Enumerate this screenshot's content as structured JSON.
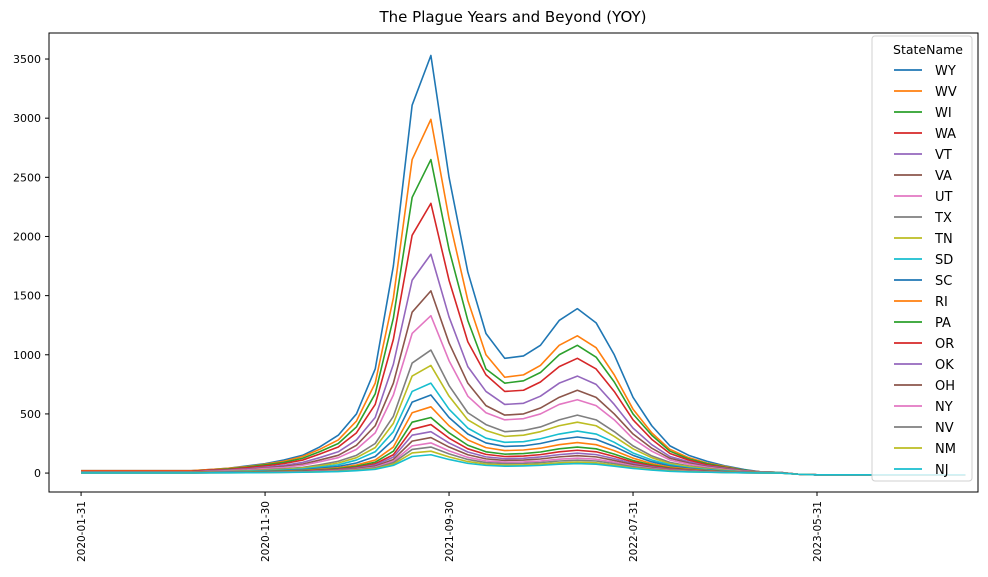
{
  "chart_data": {
    "type": "line",
    "title": "The Plague Years and Beyond (YOY)",
    "xlabel": "",
    "ylabel": "",
    "legend_title": "StateName",
    "legend_position": "top-right",
    "grid": false,
    "ylim": [
      -160,
      3720
    ],
    "xlim": [
      "2019-12-09",
      "2024-02-21"
    ],
    "x_tick_labels": [
      "2020-01-31",
      "2020-11-30",
      "2021-09-30",
      "2022-07-31",
      "2023-05-31"
    ],
    "y_tick_labels": [
      "0",
      "500",
      "1000",
      "1500",
      "2000",
      "2500",
      "3000",
      "3500"
    ],
    "x": [
      "2020-01-31",
      "2020-02-29",
      "2020-03-31",
      "2020-04-30",
      "2020-05-31",
      "2020-06-30",
      "2020-07-31",
      "2020-08-31",
      "2020-09-30",
      "2020-10-31",
      "2020-11-30",
      "2020-12-31",
      "2021-01-31",
      "2021-02-28",
      "2021-03-31",
      "2021-04-30",
      "2021-05-31",
      "2021-06-30",
      "2021-07-31",
      "2021-08-31",
      "2021-09-30",
      "2021-10-31",
      "2021-11-30",
      "2021-12-31",
      "2022-01-31",
      "2022-02-28",
      "2022-03-31",
      "2022-04-30",
      "2022-05-31",
      "2022-06-30",
      "2022-07-31",
      "2022-08-31",
      "2022-09-30",
      "2022-10-31",
      "2022-11-30",
      "2022-12-31",
      "2023-01-31",
      "2023-02-28",
      "2023-03-31",
      "2023-04-30",
      "2023-05-31",
      "2023-06-30",
      "2023-07-31",
      "2023-08-31",
      "2023-09-30",
      "2023-10-31",
      "2023-11-30",
      "2023-12-31",
      "2024-01-31"
    ],
    "series": [
      {
        "name": "WY",
        "color": "#1f77b4",
        "values": [
          20,
          20,
          20,
          20,
          20,
          20,
          20,
          30,
          40,
          60,
          80,
          110,
          150,
          220,
          320,
          500,
          880,
          1750,
          3110,
          3530,
          2500,
          1700,
          1180,
          970,
          990,
          1080,
          1290,
          1390,
          1270,
          1000,
          640,
          400,
          230,
          150,
          100,
          60,
          30,
          10,
          5,
          -10,
          -15,
          -15,
          -15,
          -15,
          -15,
          -15,
          -15,
          -15,
          -15
        ]
      },
      {
        "name": "WV",
        "color": "#ff7f0e",
        "values": [
          20,
          20,
          20,
          20,
          20,
          20,
          20,
          30,
          40,
          55,
          75,
          100,
          140,
          200,
          280,
          440,
          760,
          1480,
          2650,
          2990,
          2150,
          1460,
          1000,
          810,
          830,
          910,
          1080,
          1160,
          1060,
          830,
          540,
          340,
          200,
          130,
          85,
          55,
          25,
          10,
          5,
          -10,
          -15,
          -15,
          -15,
          -15,
          -15,
          -15,
          -15,
          -15,
          -15
        ]
      },
      {
        "name": "WI",
        "color": "#2ca02c",
        "values": [
          15,
          15,
          15,
          15,
          15,
          15,
          15,
          25,
          35,
          50,
          70,
          90,
          125,
          180,
          250,
          390,
          670,
          1310,
          2330,
          2650,
          1890,
          1290,
          880,
          760,
          780,
          850,
          1000,
          1080,
          980,
          770,
          500,
          320,
          185,
          120,
          80,
          50,
          25,
          10,
          5,
          -10,
          -15,
          -15,
          -15,
          -15,
          -15,
          -15,
          -15,
          -15,
          -15
        ]
      },
      {
        "name": "WA",
        "color": "#d62728",
        "values": [
          15,
          15,
          15,
          15,
          15,
          15,
          15,
          25,
          30,
          45,
          60,
          80,
          110,
          160,
          220,
          340,
          580,
          1130,
          2010,
          2280,
          1630,
          1110,
          830,
          690,
          700,
          770,
          900,
          970,
          880,
          690,
          450,
          285,
          165,
          110,
          70,
          45,
          20,
          10,
          5,
          -10,
          -15,
          -15,
          -15,
          -15,
          -15,
          -15,
          -15,
          -15,
          -15
        ]
      },
      {
        "name": "VT",
        "color": "#9467bd",
        "values": [
          10,
          10,
          10,
          10,
          10,
          10,
          10,
          20,
          25,
          35,
          50,
          65,
          90,
          130,
          180,
          280,
          470,
          920,
          1630,
          1850,
          1320,
          900,
          690,
          580,
          590,
          650,
          760,
          820,
          750,
          580,
          380,
          240,
          140,
          95,
          60,
          40,
          20,
          10,
          5,
          -10,
          -15,
          -15,
          -15,
          -15,
          -15,
          -15,
          -15,
          -15,
          -15
        ]
      },
      {
        "name": "VA",
        "color": "#8c564b",
        "values": [
          10,
          10,
          10,
          10,
          10,
          10,
          10,
          18,
          22,
          30,
          42,
          55,
          75,
          110,
          150,
          235,
          400,
          760,
          1360,
          1540,
          1100,
          760,
          570,
          490,
          500,
          550,
          640,
          700,
          640,
          500,
          330,
          210,
          125,
          85,
          55,
          35,
          18,
          10,
          5,
          -10,
          -15,
          -15,
          -15,
          -15,
          -15,
          -15,
          -15,
          -15,
          -15
        ]
      },
      {
        "name": "UT",
        "color": "#e377c2",
        "values": [
          10,
          10,
          10,
          10,
          10,
          10,
          10,
          15,
          20,
          27,
          38,
          48,
          66,
          95,
          130,
          200,
          340,
          660,
          1180,
          1330,
          950,
          650,
          510,
          450,
          460,
          500,
          580,
          620,
          570,
          450,
          290,
          185,
          110,
          75,
          50,
          30,
          15,
          10,
          5,
          -10,
          -15,
          -15,
          -15,
          -15,
          -15,
          -15,
          -15,
          -15,
          -15
        ]
      },
      {
        "name": "TX",
        "color": "#7f7f7f",
        "values": [
          8,
          8,
          8,
          8,
          8,
          8,
          8,
          12,
          15,
          20,
          28,
          36,
          48,
          70,
          100,
          150,
          250,
          480,
          930,
          1040,
          740,
          510,
          410,
          350,
          360,
          390,
          450,
          490,
          450,
          350,
          230,
          145,
          90,
          60,
          40,
          25,
          12,
          8,
          4,
          -10,
          -15,
          -15,
          -15,
          -15,
          -15,
          -15,
          -15,
          -15,
          -15
        ]
      },
      {
        "name": "TN",
        "color": "#bcbd22",
        "values": [
          6,
          6,
          6,
          6,
          6,
          6,
          6,
          10,
          12,
          17,
          24,
          31,
          42,
          60,
          85,
          130,
          215,
          420,
          820,
          910,
          650,
          450,
          360,
          310,
          320,
          350,
          400,
          430,
          400,
          310,
          205,
          130,
          80,
          55,
          35,
          22,
          10,
          6,
          3,
          -10,
          -15,
          -15,
          -15,
          -15,
          -15,
          -15,
          -15,
          -15,
          -15
        ]
      },
      {
        "name": "SD",
        "color": "#17becf",
        "values": [
          5,
          5,
          5,
          5,
          5,
          5,
          5,
          8,
          10,
          14,
          20,
          26,
          35,
          50,
          70,
          110,
          180,
          350,
          690,
          760,
          540,
          380,
          295,
          260,
          265,
          290,
          330,
          355,
          330,
          260,
          170,
          110,
          70,
          45,
          30,
          18,
          9,
          5,
          3,
          -10,
          -15,
          -15,
          -15,
          -15,
          -15,
          -15,
          -15,
          -15,
          -15
        ]
      },
      {
        "name": "SC",
        "color": "#1f77b4",
        "values": [
          4,
          4,
          4,
          4,
          4,
          4,
          4,
          7,
          8,
          11,
          16,
          21,
          28,
          40,
          56,
          85,
          140,
          280,
          600,
          660,
          470,
          330,
          255,
          225,
          230,
          250,
          285,
          305,
          285,
          225,
          150,
          95,
          60,
          40,
          25,
          15,
          8,
          4,
          2,
          -10,
          -15,
          -15,
          -15,
          -15,
          -15,
          -15,
          -15,
          -15,
          -15
        ]
      },
      {
        "name": "RI",
        "color": "#ff7f0e",
        "values": [
          3,
          3,
          3,
          3,
          3,
          3,
          3,
          6,
          7,
          9,
          13,
          17,
          22,
          32,
          45,
          68,
          110,
          220,
          510,
          560,
          400,
          280,
          215,
          190,
          195,
          210,
          240,
          258,
          240,
          190,
          126,
          80,
          50,
          33,
          21,
          12,
          6,
          3,
          2,
          -10,
          -15,
          -15,
          -15,
          -15,
          -15,
          -15,
          -15,
          -15,
          -15
        ]
      },
      {
        "name": "PA",
        "color": "#2ca02c",
        "values": [
          3,
          3,
          3,
          3,
          3,
          3,
          3,
          5,
          6,
          8,
          11,
          14,
          19,
          27,
          38,
          57,
          92,
          185,
          430,
          470,
          340,
          235,
          180,
          160,
          165,
          178,
          205,
          220,
          205,
          160,
          106,
          68,
          42,
          28,
          18,
          10,
          5,
          3,
          2,
          -10,
          -15,
          -15,
          -15,
          -15,
          -15,
          -15,
          -15,
          -15,
          -15
        ]
      },
      {
        "name": "OR",
        "color": "#d62728",
        "values": [
          2,
          2,
          2,
          2,
          2,
          2,
          2,
          4,
          5,
          7,
          9,
          12,
          16,
          23,
          32,
          48,
          78,
          155,
          370,
          410,
          295,
          205,
          158,
          140,
          144,
          156,
          180,
          193,
          180,
          140,
          93,
          60,
          37,
          25,
          16,
          9,
          4,
          2,
          1,
          -10,
          -15,
          -15,
          -15,
          -15,
          -15,
          -15,
          -15,
          -15,
          -15
        ]
      },
      {
        "name": "OK",
        "color": "#9467bd",
        "values": [
          2,
          2,
          2,
          2,
          2,
          2,
          2,
          4,
          4,
          6,
          8,
          10,
          14,
          20,
          28,
          42,
          68,
          135,
          320,
          350,
          255,
          178,
          137,
          122,
          125,
          136,
          156,
          168,
          156,
          122,
          81,
          52,
          32,
          22,
          14,
          8,
          4,
          2,
          1,
          -10,
          -15,
          -15,
          -15,
          -15,
          -15,
          -15,
          -15,
          -15,
          -15
        ]
      },
      {
        "name": "OH",
        "color": "#8c564b",
        "values": [
          2,
          2,
          2,
          2,
          2,
          2,
          2,
          3,
          4,
          5,
          7,
          9,
          12,
          17,
          24,
          36,
          58,
          115,
          270,
          300,
          220,
          155,
          120,
          107,
          110,
          119,
          137,
          147,
          137,
          107,
          71,
          46,
          28,
          19,
          12,
          7,
          3,
          2,
          1,
          -10,
          -15,
          -15,
          -15,
          -15,
          -15,
          -15,
          -15,
          -15,
          -15
        ]
      },
      {
        "name": "NY",
        "color": "#e377c2",
        "values": [
          1,
          1,
          1,
          1,
          1,
          1,
          1,
          3,
          3,
          4,
          6,
          8,
          10,
          15,
          21,
          31,
          50,
          100,
          230,
          255,
          188,
          133,
          103,
          92,
          94,
          102,
          117,
          126,
          117,
          92,
          61,
          39,
          24,
          16,
          10,
          6,
          3,
          1,
          1,
          -10,
          -15,
          -15,
          -15,
          -15,
          -15,
          -15,
          -15,
          -15,
          -15
        ]
      },
      {
        "name": "NV",
        "color": "#7f7f7f",
        "values": [
          1,
          1,
          1,
          1,
          1,
          1,
          1,
          2,
          3,
          4,
          5,
          7,
          9,
          13,
          18,
          27,
          44,
          88,
          200,
          220,
          162,
          115,
          89,
          80,
          82,
          89,
          102,
          109,
          102,
          80,
          53,
          34,
          21,
          14,
          9,
          5,
          2,
          1,
          0,
          -10,
          -15,
          -15,
          -15,
          -15,
          -15,
          -15,
          -15,
          -15,
          -15
        ]
      },
      {
        "name": "NM",
        "color": "#bcbd22",
        "values": [
          1,
          1,
          1,
          1,
          1,
          1,
          1,
          2,
          2,
          3,
          4,
          6,
          8,
          11,
          15,
          23,
          37,
          75,
          170,
          185,
          137,
          97,
          76,
          68,
          70,
          76,
          87,
          93,
          87,
          68,
          45,
          29,
          18,
          12,
          8,
          4,
          2,
          1,
          0,
          -10,
          -15,
          -15,
          -15,
          -15,
          -15,
          -15,
          -15,
          -15,
          -15
        ]
      },
      {
        "name": "NJ",
        "color": "#17becf",
        "values": [
          1,
          1,
          1,
          1,
          1,
          1,
          1,
          2,
          2,
          3,
          4,
          5,
          7,
          10,
          13,
          20,
          32,
          65,
          140,
          155,
          115,
          82,
          65,
          58,
          60,
          65,
          75,
          80,
          75,
          58,
          39,
          25,
          15,
          10,
          7,
          4,
          2,
          1,
          0,
          -10,
          -15,
          -15,
          -15,
          -15,
          -15,
          -15,
          -15,
          -15,
          -15
        ]
      }
    ]
  }
}
